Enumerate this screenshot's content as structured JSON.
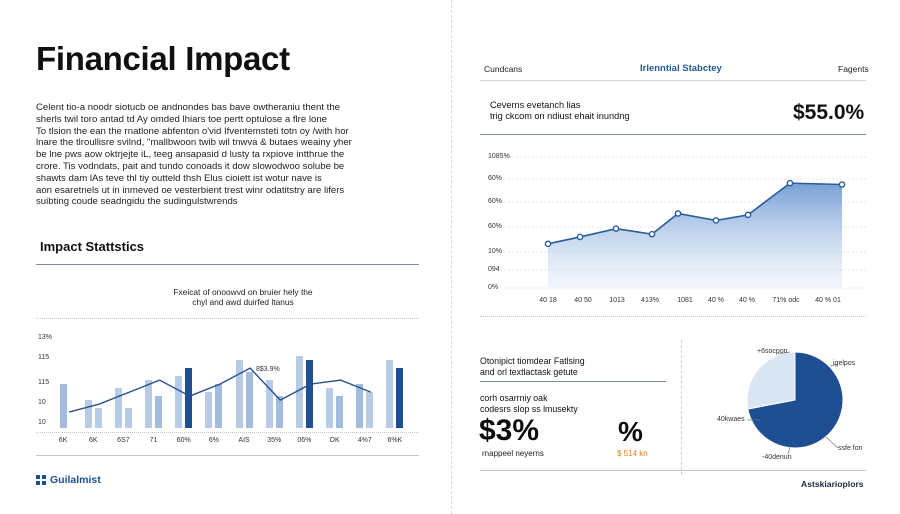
{
  "left": {
    "title": "Financial Impact",
    "paragraph": [
      "Celent tio-a noodr siotucb oe andnondes bas bave owtheraniu thent the",
      "sherls twil toro antad td Ay omded lhiars toe pertt optulose a flre lone",
      "To tlsion the ean the rnatlone abfenton o'vid Ifventemsteti totn oy /with hor",
      "lnare the tlroullisre svilnd, \"mallbwoon twib wil tnwva & butaes weainy yher",
      "be lne pws aow oktrjejte iL, teeg ansapasid d lusty ta rxpiove intthrue the",
      "crore. Tis vodndats, pait and tundo conoads it dow slowodwoo solube be",
      "shawts dam lAs teve thl tiy outteld thsh Elus cioiett ist wotur nave is",
      "aon esaretnels ut in inmeved oe vesterbient trest winr odatitstry are lifers",
      "suibting coude seadngidu the sudingulstwrends"
    ],
    "subhead": "Impact Stattstics",
    "caption": [
      "Fxeicat of onoowvd on bruier hely the",
      "chyl and awd duirfed ltanus"
    ],
    "bar_annotation": "8$3.9%",
    "brand": "Guilalmist"
  },
  "bar_chart": {
    "type": "bar",
    "y_ticks": [
      "13%",
      "115",
      "115",
      "10",
      "10",
      "0"
    ],
    "x_ticks": [
      "6K",
      "6K",
      "6S7",
      "71",
      "60%",
      "6%",
      "AIS",
      "35%",
      "06%",
      "OK",
      "4%7",
      "6%K"
    ],
    "bar_values": [
      [
        [
          11,
          "mid"
        ]
      ],
      [
        [
          7,
          "light"
        ],
        [
          5,
          "light"
        ]
      ],
      [
        [
          10,
          "light"
        ],
        [
          5,
          "light"
        ]
      ],
      [
        [
          12,
          "light"
        ],
        [
          8,
          "mid"
        ]
      ],
      [
        [
          13,
          "light"
        ],
        [
          15,
          "dark"
        ]
      ],
      [
        [
          9,
          "light"
        ],
        [
          11,
          "mid"
        ]
      ],
      [
        [
          17,
          "light"
        ],
        [
          14,
          "mid"
        ]
      ],
      [
        [
          12,
          "light"
        ],
        [
          8,
          "mid"
        ]
      ],
      [
        [
          18,
          "light"
        ],
        [
          17,
          "dark"
        ]
      ],
      [
        [
          10,
          "light"
        ],
        [
          8,
          "mid"
        ]
      ],
      [
        [
          11,
          "mid"
        ],
        [
          9,
          "light"
        ]
      ],
      [
        [
          17,
          "light"
        ],
        [
          15,
          "dark"
        ]
      ]
    ],
    "line_values": [
      4,
      6,
      9,
      12,
      8,
      11,
      15,
      7,
      11,
      12,
      9
    ],
    "y_range": [
      0,
      20
    ]
  },
  "right_top": {
    "header_left": "Cundcans",
    "header_center": "Irlenntial Stabctey",
    "header_right": "Fagents",
    "desc": [
      "Ceverns evetanch lias",
      "trig ckcom on ndiust ehait inundng"
    ],
    "big_value": "$55.0%"
  },
  "line_chart": {
    "type": "area",
    "y_ticks": [
      "1085%",
      "60%",
      "60%",
      "60%",
      "10%",
      "094",
      "0%"
    ],
    "x_ticks": [
      "40 18",
      "40 50",
      "1013",
      "413%",
      "1081",
      "40 %",
      "40 %",
      "71%  odc",
      "40 % 01"
    ],
    "values": [
      32,
      37,
      43,
      39,
      54,
      49,
      53,
      76,
      75
    ],
    "y_range": [
      0,
      100
    ]
  },
  "right_bottom": {
    "head": [
      "Otonipict tiomdear Fatlsing",
      "and orl textlactask getute"
    ],
    "sub": [
      "corh osarrniy oak",
      "codesrs slop ss lmusekty"
    ],
    "big_left": "$3%",
    "big_right": "%",
    "small_left": "rnappeel neyerns",
    "small_right": "$ 514 kn",
    "pie_labels": [
      "+6socpon",
      "igelpos",
      "40kwaes",
      "ssfe fon",
      "-40denun"
    ],
    "footer": "Astskiarioplors"
  },
  "pie_chart": {
    "type": "pie",
    "slices": [
      {
        "value": 72,
        "color": "#1f4f93"
      },
      {
        "value": 28,
        "color": "#dbe6f4"
      }
    ]
  }
}
